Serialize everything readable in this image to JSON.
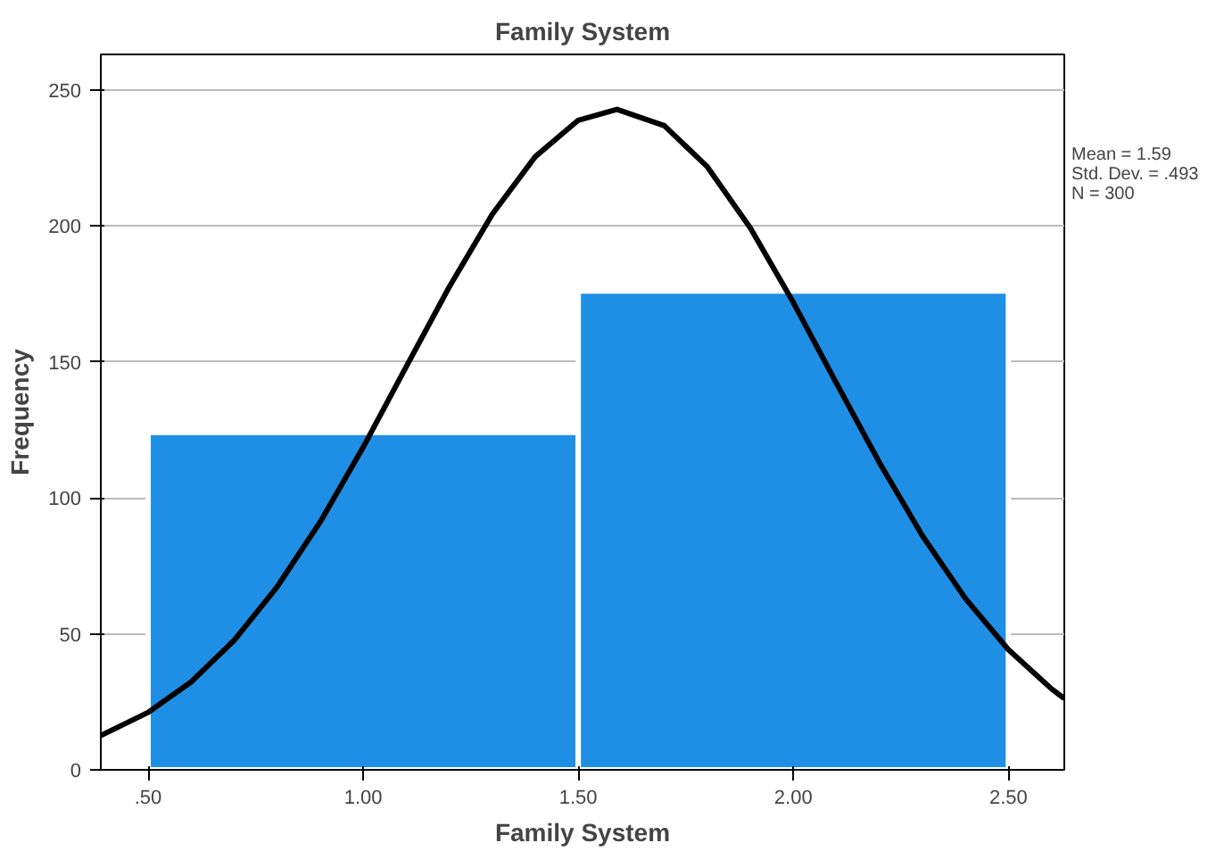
{
  "chart_data": {
    "type": "histogram",
    "title": "Family System",
    "xlabel": "Family System",
    "ylabel": "Frequency",
    "bins": [
      0.5,
      1.5,
      2.5
    ],
    "values": [
      124,
      176
    ],
    "color": "#1f8fe5",
    "series": [
      {
        "type": "line",
        "color": "#000000",
        "x": [
          0.39,
          0.5,
          0.6,
          0.7,
          0.8,
          0.9,
          1.0,
          1.1,
          1.2,
          1.3,
          1.4,
          1.5,
          1.59,
          1.7,
          1.8,
          1.9,
          2.0,
          2.1,
          2.2,
          2.3,
          2.4,
          2.5,
          2.6,
          2.63
        ],
        "values": [
          12.6,
          21.1,
          32.3,
          47.6,
          67.3,
          91.1,
          118.6,
          148.2,
          177.5,
          204.2,
          225.4,
          238.8,
          242.8,
          236.8,
          221.7,
          199.2,
          171.8,
          142.2,
          113.0,
          86.1,
          63.0,
          44.2,
          29.8,
          26.2
        ]
      }
    ],
    "xlim": [
      0.39,
      2.63
    ],
    "ylim": [
      0,
      263
    ],
    "xticks": [
      {
        "value": 0.5,
        "label": ".50"
      },
      {
        "value": 1.0,
        "label": "1.00"
      },
      {
        "value": 1.5,
        "label": "1.50"
      },
      {
        "value": 2.0,
        "label": "2.00"
      },
      {
        "value": 2.5,
        "label": "2.50"
      }
    ],
    "yticks": [
      0,
      50,
      100,
      150,
      200,
      250
    ],
    "grid": "y",
    "annotations": [
      "Mean = 1.59",
      "Std. Dev. = .493",
      "N = 300"
    ]
  }
}
